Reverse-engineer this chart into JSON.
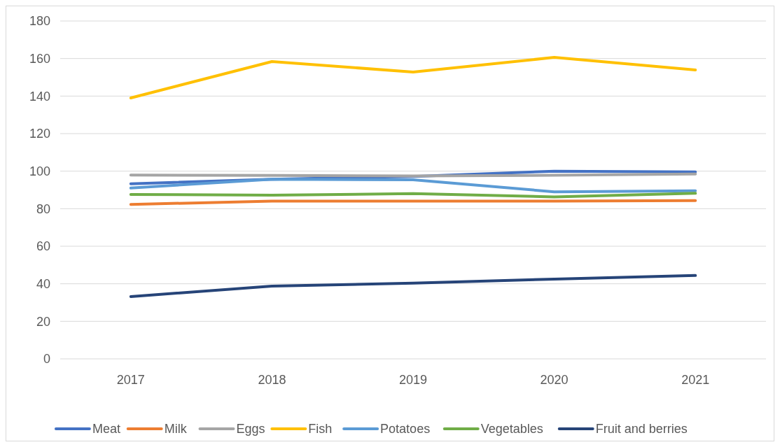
{
  "chart_data": {
    "type": "line",
    "categories": [
      "2017",
      "2018",
      "2019",
      "2020",
      "2021"
    ],
    "ylim": [
      0,
      180
    ],
    "yticks": [
      0,
      20,
      40,
      60,
      80,
      100,
      120,
      140,
      160,
      180
    ],
    "grid": "y",
    "legend": "bottom",
    "line_style": "solid",
    "marker": "none",
    "series": [
      {
        "name": "Meat",
        "color": "#4472c4",
        "values": [
          93.3,
          95.7,
          97.2,
          100,
          99.6
        ]
      },
      {
        "name": "Milk",
        "color": "#ed7d31",
        "values": [
          82.3,
          84,
          84,
          84,
          84.3
        ]
      },
      {
        "name": "Eggs",
        "color": "#a5a5a5",
        "values": [
          97.9,
          97.7,
          97.5,
          97.8,
          98.5
        ]
      },
      {
        "name": "Fish",
        "color": "#ffc000",
        "values": [
          139,
          158.4,
          152.8,
          160.6,
          153.9
        ]
      },
      {
        "name": "Potatoes",
        "color": "#5b9bd5",
        "values": [
          91,
          95.7,
          95.4,
          89,
          89.5
        ]
      },
      {
        "name": "Vegetables",
        "color": "#70ad47",
        "values": [
          87.6,
          87.2,
          88,
          86.3,
          88.2
        ]
      },
      {
        "name": "Fruit and berries",
        "color": "#264478",
        "values": [
          33.2,
          38.8,
          40.3,
          42.5,
          44.4
        ]
      }
    ]
  }
}
